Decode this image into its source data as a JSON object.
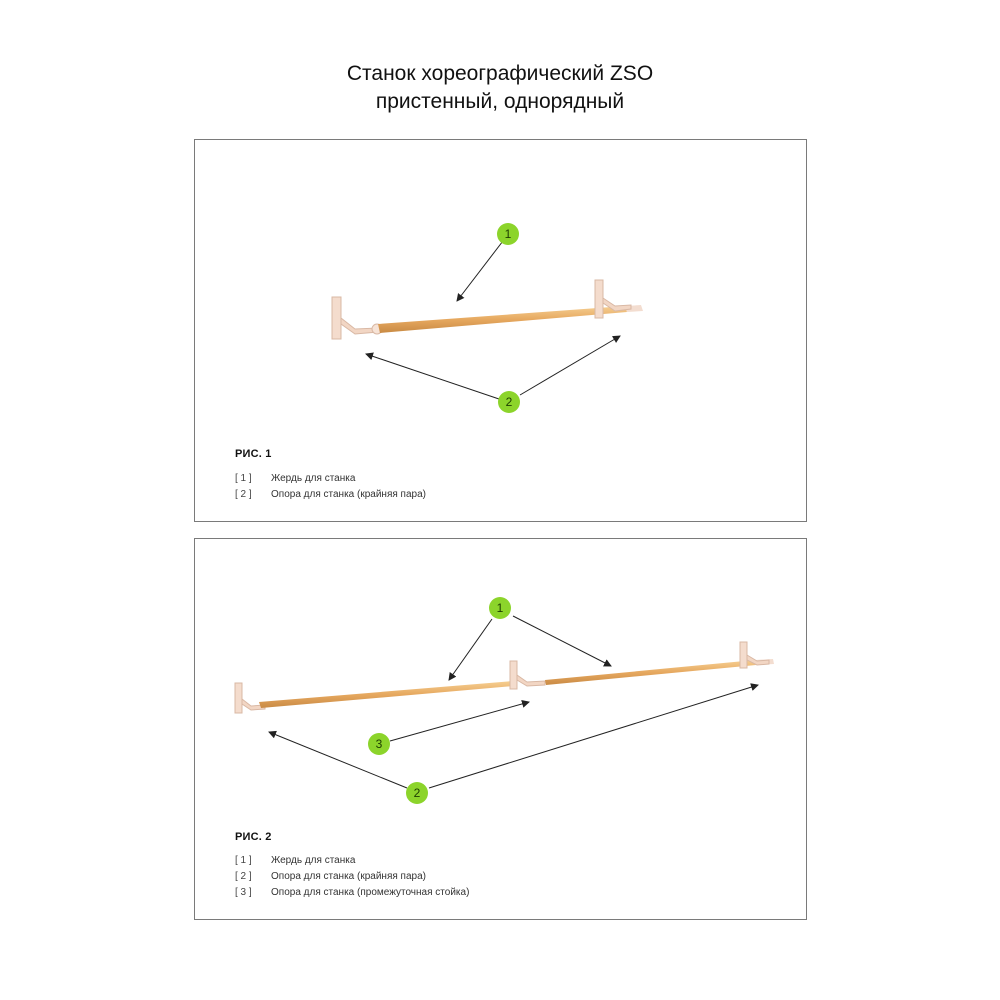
{
  "title": {
    "line1": "Станок хореографический ZSO",
    "line2": "пристенный, однорядный"
  },
  "figures": [
    {
      "label": "РИС. 1",
      "callouts": [
        "1",
        "2"
      ],
      "legend": [
        {
          "num": "[  1  ]",
          "text": "Жердь для станка"
        },
        {
          "num": "[  2  ]",
          "text": "Опора для станка (крайняя пара)"
        }
      ]
    },
    {
      "label": "РИС. 2",
      "callouts": [
        "1",
        "3",
        "2"
      ],
      "legend": [
        {
          "num": "[  1  ]",
          "text": "Жердь для станка"
        },
        {
          "num": "[  2  ]",
          "text": "Опора для станка (крайняя пара)"
        },
        {
          "num": "[  3  ]",
          "text": "Опора для станка (промежуточная стойка)"
        }
      ]
    }
  ],
  "colors": {
    "callout_fill": "#8cd42b",
    "wood": "#e8b06a",
    "bracket": "#f4dccd",
    "border": "#7a7a7a"
  }
}
